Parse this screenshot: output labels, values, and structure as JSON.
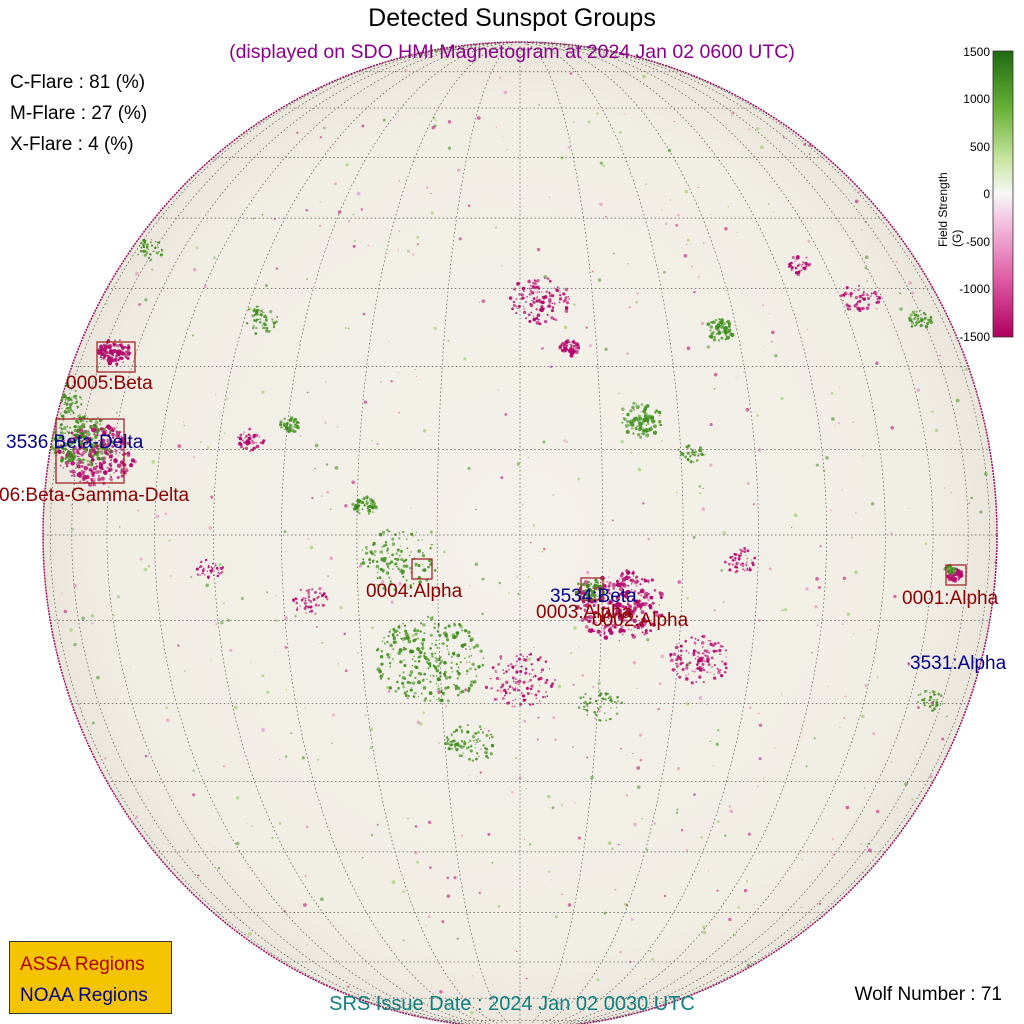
{
  "title": "Detected Sunspot Groups",
  "subtitle": "(displayed on SDO HMI Magnetogram at 2024 Jan 02 0600 UTC)",
  "flare_probabilities": [
    {
      "label": "C-Flare : 81 (%)"
    },
    {
      "label": "M-Flare : 27 (%)"
    },
    {
      "label": "X-Flare :  4 (%)"
    }
  ],
  "colorbar": {
    "label": "Field Strength (G)",
    "ticks": [
      "1500",
      "1000",
      "500",
      "0",
      "-500",
      "-1000",
      "-1500"
    ],
    "range": [
      -1500,
      1500
    ],
    "colors": {
      "positive": "#2d7a16",
      "zero": "#f7f7f7",
      "negative": "#c51b7d"
    }
  },
  "regions": {
    "assa": [
      {
        "label": "0005:Beta"
      },
      {
        "label": "06:Beta-Gamma-Delta"
      },
      {
        "label": "0004:Alpha"
      },
      {
        "label": "0003:Alpha"
      },
      {
        "label": "0002:Alpha"
      },
      {
        "label": "0001:Alpha"
      }
    ],
    "noaa": [
      {
        "label": "3536 Beta-Delta"
      },
      {
        "label": "3534:Beta"
      },
      {
        "label": "3531:Alpha"
      }
    ]
  },
  "legend": {
    "assa": "ASSA Regions",
    "noaa": "NOAA Regions",
    "colors": {
      "background": "#f5c400",
      "assa_text": "#b20000",
      "noaa_text": "#00008b"
    }
  },
  "wolf_number": "Wolf Number : 71",
  "srs_issue": "SRS Issue Date : 2024 Jan 02 0030 UTC"
}
